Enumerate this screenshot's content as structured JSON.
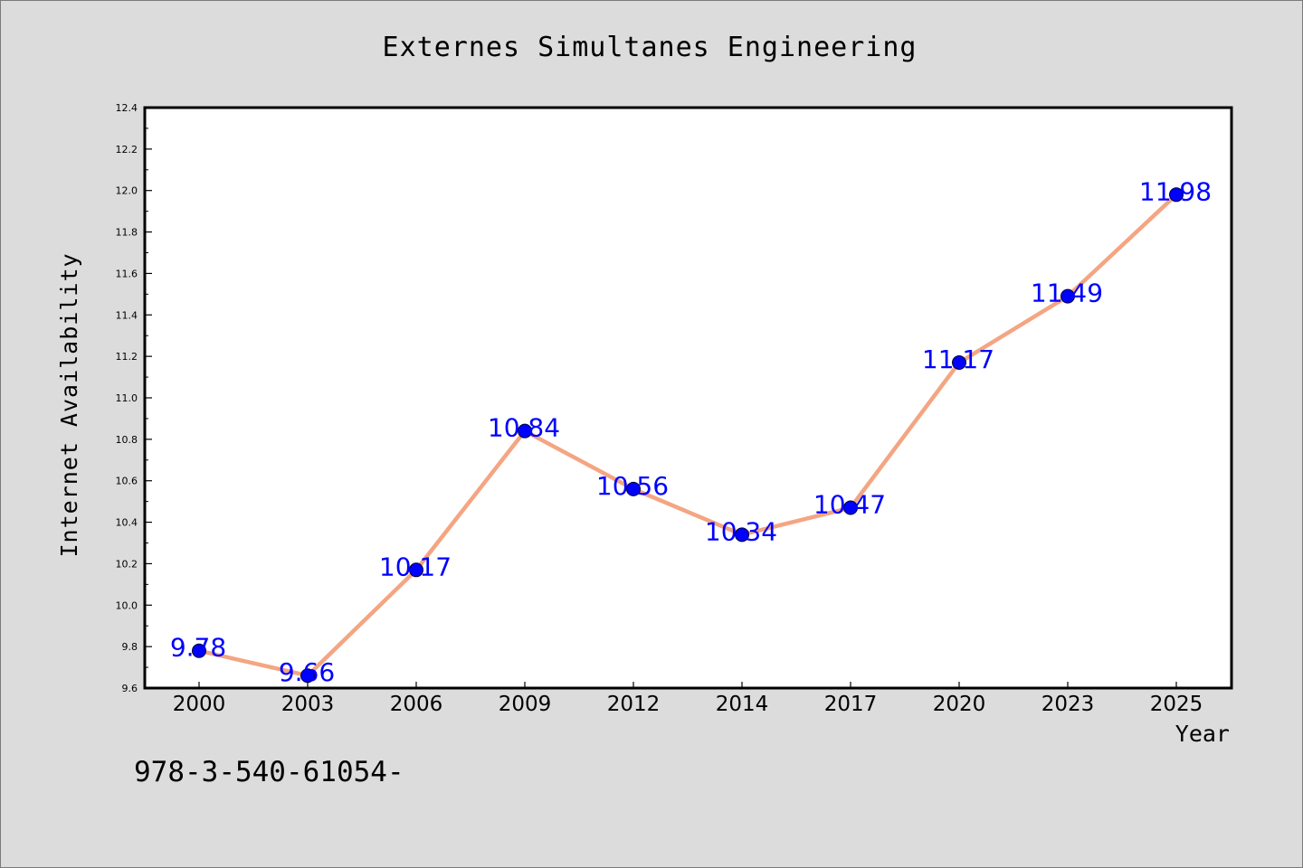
{
  "footer_text": "978-3-540-61054-",
  "colors": {
    "background": "#dcdcdc",
    "plot_background": "#ffffff",
    "line": "#f4a582",
    "marker": "#0000ff",
    "data_label": "#0000ff",
    "axis": "#000000"
  },
  "chart_data": {
    "type": "line",
    "title": "Externes Simultanes Engineering",
    "xlabel": "Year",
    "ylabel": "Internet Availability",
    "categories": [
      "2000",
      "2003",
      "2006",
      "2009",
      "2012",
      "2014",
      "2017",
      "2020",
      "2023",
      "2025"
    ],
    "series": [
      {
        "values": [
          9.78,
          9.66,
          10.17,
          10.84,
          10.56,
          10.34,
          10.47,
          11.17,
          11.49,
          11.98
        ]
      }
    ],
    "data_labels": [
      "9.78",
      "9.66",
      "10.17",
      "10.84",
      "10.56",
      "10.34",
      "10.47",
      "11.17",
      "11.49",
      "11.98"
    ],
    "ylim": [
      9.6,
      12.4
    ],
    "yticks": [
      "9.6",
      "9.8",
      "10.0",
      "10.2",
      "10.4",
      "10.6",
      "10.8",
      "11.0",
      "11.2",
      "11.4",
      "11.6",
      "11.8",
      "12.0",
      "12.2",
      "12.4"
    ],
    "grid": false,
    "legend": "none"
  }
}
